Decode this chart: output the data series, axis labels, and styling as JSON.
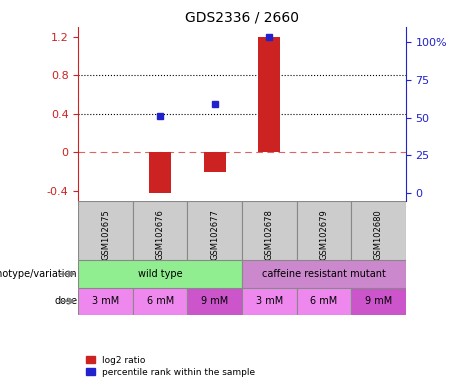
{
  "title": "GDS2336 / 2660",
  "samples": [
    "GSM102675",
    "GSM102676",
    "GSM102677",
    "GSM102678",
    "GSM102679",
    "GSM102680"
  ],
  "log2_ratio": [
    null,
    -0.42,
    -0.2,
    1.2,
    null,
    null
  ],
  "percentile_rank_left": [
    null,
    0.375,
    0.5,
    1.2,
    null,
    null
  ],
  "percentile_rank_right": [
    null,
    47,
    57,
    100,
    null,
    null
  ],
  "ylim_left": [
    -0.5,
    1.3
  ],
  "ylim_right": [
    -5,
    110
  ],
  "yticks_left": [
    -0.4,
    0.0,
    0.4,
    0.8,
    1.2
  ],
  "yticks_right": [
    0,
    25,
    50,
    75,
    100
  ],
  "ytick_labels_left": [
    "-0.4",
    "0",
    "0.4",
    "0.8",
    "1.2"
  ],
  "ytick_labels_right": [
    "0",
    "25",
    "50",
    "75",
    "100%"
  ],
  "hlines_dotted": [
    0.4,
    0.8
  ],
  "hline_dashed": 0.0,
  "bar_color": "#cc2222",
  "dot_color": "#2222cc",
  "genotype_groups": [
    {
      "label": "wild type",
      "start": 0,
      "end": 3,
      "color": "#90ee90"
    },
    {
      "label": "caffeine resistant mutant",
      "start": 3,
      "end": 6,
      "color": "#cc88cc"
    }
  ],
  "dose_labels": [
    "3 mM",
    "6 mM",
    "9 mM",
    "3 mM",
    "6 mM",
    "9 mM"
  ],
  "dose_colors": [
    "#ee88ee",
    "#ee88ee",
    "#cc55cc",
    "#ee88ee",
    "#ee88ee",
    "#cc55cc"
  ],
  "legend_red_label": "log2 ratio",
  "legend_blue_label": "percentile rank within the sample",
  "xlabel_genotype": "genotype/variation",
  "xlabel_dose": "dose",
  "bar_width": 0.4,
  "sample_cell_color": "#cccccc",
  "sample_cell_edgecolor": "#888888"
}
